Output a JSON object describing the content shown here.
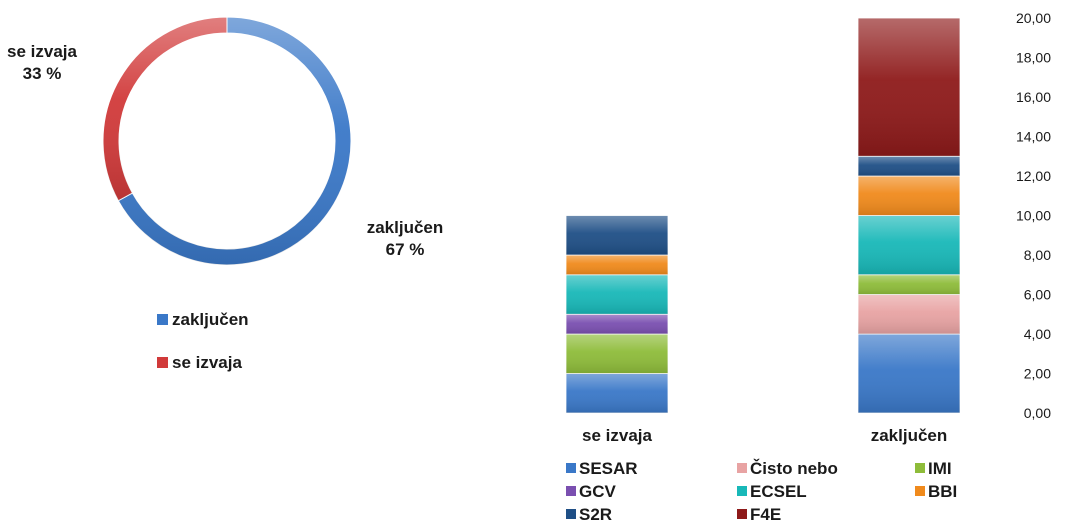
{
  "chart_data": [
    {
      "type": "pie",
      "variant": "doughnut",
      "slices": [
        {
          "label": "zaključen",
          "value": 67,
          "value_label": "67 %",
          "color": "#3a78c8"
        },
        {
          "label": "se izvaja",
          "value": 33,
          "value_label": "33 %",
          "color": "#d13a3a"
        }
      ],
      "legend": [
        "zaključen",
        "se izvaja"
      ],
      "legend_position": "bottom"
    },
    {
      "type": "bar",
      "stacked": true,
      "categories": [
        "se izvaja",
        "zaključen"
      ],
      "series": [
        {
          "name": "SESAR",
          "color": "#3a78c8",
          "values": [
            2,
            4
          ]
        },
        {
          "name": "Čisto nebo",
          "color": "#e8a3a3",
          "values": [
            0,
            2
          ]
        },
        {
          "name": "IMI",
          "color": "#8ebc3a",
          "values": [
            2,
            1
          ]
        },
        {
          "name": "GCV",
          "color": "#7a4fb0",
          "values": [
            1,
            0
          ]
        },
        {
          "name": "ECSEL",
          "color": "#18b8b8",
          "values": [
            2,
            3
          ]
        },
        {
          "name": "BBI",
          "color": "#f08a1c",
          "values": [
            1,
            2
          ]
        },
        {
          "name": "S2R",
          "color": "#1f4f86",
          "values": [
            2,
            1
          ]
        },
        {
          "name": "F4E",
          "color": "#8e1a1a",
          "values": [
            0,
            7
          ]
        }
      ],
      "yticks": [
        "0,00",
        "2,00",
        "4,00",
        "6,00",
        "8,00",
        "10,00",
        "12,00",
        "14,00",
        "16,00",
        "18,00",
        "20,00"
      ],
      "ylim": [
        0,
        20
      ],
      "y_axis_side": "right",
      "legend_position": "bottom"
    }
  ]
}
